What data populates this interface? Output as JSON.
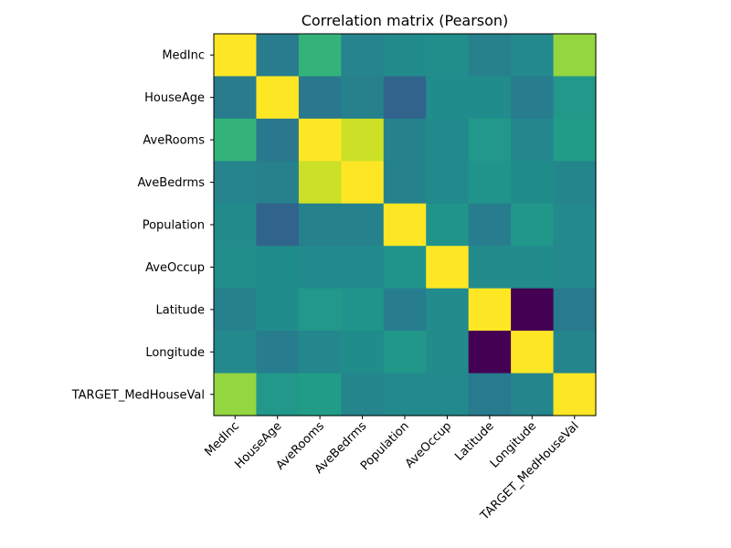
{
  "chart_data": {
    "type": "heatmap",
    "title": "Correlation matrix (Pearson)",
    "colormap": "viridis",
    "color_range": [
      -1,
      1
    ],
    "labels": [
      "MedInc",
      "HouseAge",
      "AveRooms",
      "AveBedrms",
      "Population",
      "AveOccup",
      "Latitude",
      "Longitude",
      "TARGET_MedHouseVal"
    ],
    "values": [
      [
        1.0,
        -0.12,
        0.33,
        -0.06,
        0.0,
        0.02,
        -0.08,
        -0.02,
        0.69
      ],
      [
        -0.12,
        1.0,
        -0.15,
        -0.08,
        -0.3,
        0.01,
        0.01,
        -0.11,
        0.11
      ],
      [
        0.33,
        -0.15,
        1.0,
        0.85,
        -0.07,
        -0.01,
        0.11,
        -0.03,
        0.15
      ],
      [
        -0.06,
        -0.08,
        0.85,
        1.0,
        -0.07,
        -0.01,
        0.07,
        0.01,
        -0.05
      ],
      [
        0.0,
        -0.3,
        -0.07,
        -0.07,
        1.0,
        0.07,
        -0.11,
        0.1,
        -0.02
      ],
      [
        0.02,
        0.01,
        -0.01,
        -0.01,
        0.07,
        1.0,
        0.0,
        0.0,
        -0.02
      ],
      [
        -0.08,
        0.01,
        0.11,
        0.07,
        -0.11,
        0.0,
        1.0,
        -0.92,
        -0.14
      ],
      [
        -0.02,
        -0.11,
        -0.03,
        0.01,
        0.1,
        0.0,
        -0.92,
        1.0,
        -0.05
      ],
      [
        0.69,
        0.11,
        0.15,
        -0.05,
        -0.02,
        -0.02,
        -0.14,
        -0.05,
        1.0
      ]
    ]
  }
}
